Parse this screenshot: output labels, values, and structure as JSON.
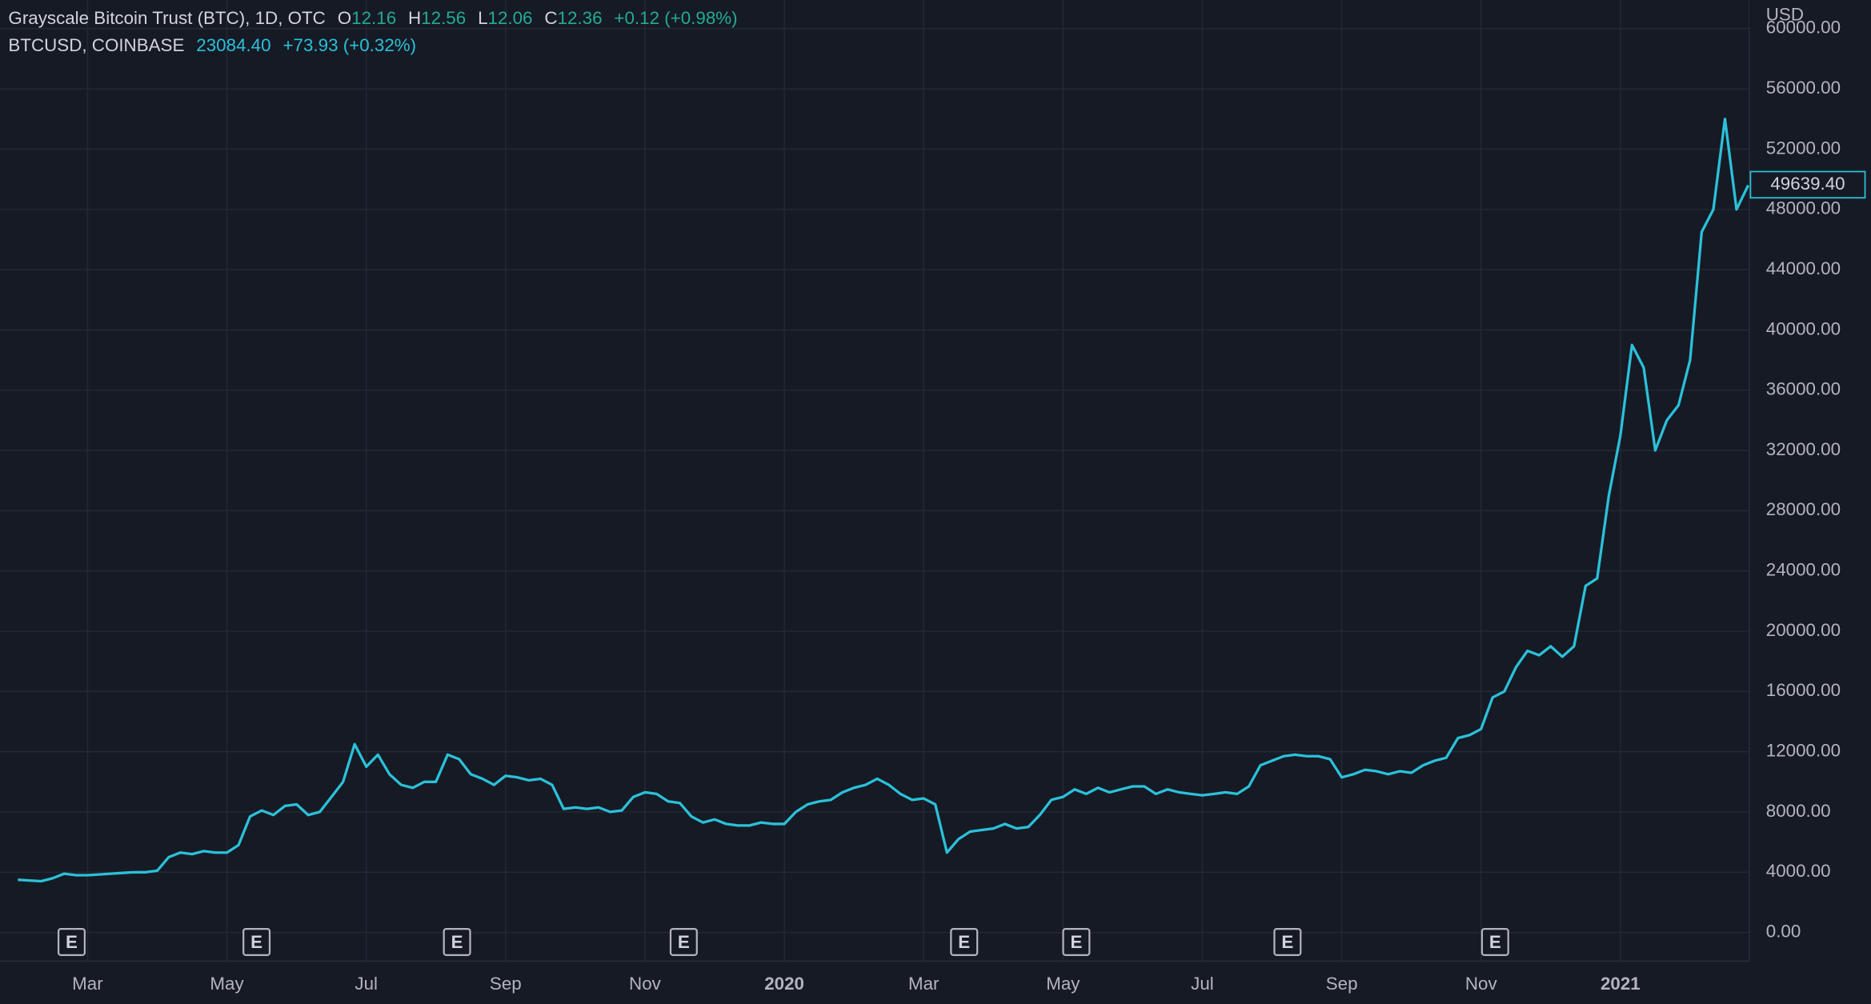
{
  "chart_data": {
    "type": "line",
    "title": "Grayscale Bitcoin Trust (BTC), 1D, OTC",
    "ohlc": [
      {
        "label": "O",
        "value": "12.16"
      },
      {
        "label": "H",
        "value": "12.56"
      },
      {
        "label": "L",
        "value": "12.06"
      },
      {
        "label": "C",
        "value": "12.36"
      }
    ],
    "change": "+0.12 (+0.98%)",
    "compare_quote": "23084.40",
    "compare_change": "+73.93 (+0.32%)",
    "y_unit": "USD",
    "grid": true,
    "background": "#161a25",
    "events": [
      "E",
      "E",
      "E",
      "E",
      "E",
      "E",
      "E",
      "E"
    ],
    "categories": [
      null,
      null,
      null,
      null,
      null,
      null,
      "Mar",
      null,
      null,
      null,
      null,
      null,
      null,
      null,
      null,
      null,
      null,
      null,
      "May",
      null,
      null,
      null,
      null,
      null,
      null,
      null,
      null,
      null,
      null,
      null,
      "Jul",
      null,
      null,
      null,
      null,
      null,
      null,
      null,
      null,
      null,
      null,
      null,
      "Sep",
      null,
      null,
      null,
      null,
      null,
      null,
      null,
      null,
      null,
      null,
      null,
      "Nov",
      null,
      null,
      null,
      null,
      null,
      null,
      null,
      null,
      null,
      null,
      null,
      "2020",
      null,
      null,
      null,
      null,
      null,
      null,
      null,
      null,
      null,
      null,
      null,
      "Mar",
      null,
      null,
      null,
      null,
      null,
      null,
      null,
      null,
      null,
      null,
      null,
      "May",
      null,
      null,
      null,
      null,
      null,
      null,
      null,
      null,
      null,
      null,
      null,
      "Jul",
      null,
      null,
      null,
      null,
      null,
      null,
      null,
      null,
      null,
      null,
      null,
      "Sep",
      null,
      null,
      null,
      null,
      null,
      null,
      null,
      null,
      null,
      null,
      null,
      "Nov",
      null,
      null,
      null,
      null,
      null,
      null,
      null,
      null,
      null,
      null,
      null,
      "2021",
      null,
      null,
      null,
      null,
      null,
      null,
      null,
      null,
      null,
      null,
      null
    ],
    "series": [
      {
        "name": "BTCUSD, COINBASE",
        "color": "#2bc1d9",
        "values": [
          3500,
          3450,
          3400,
          3600,
          3900,
          3800,
          3800,
          3850,
          3900,
          3950,
          4000,
          4000,
          4100,
          5000,
          5300,
          5200,
          5400,
          5300,
          5300,
          5800,
          7700,
          8100,
          7800,
          8400,
          8500,
          7800,
          8000,
          9000,
          10000,
          12500,
          11000,
          11800,
          10500,
          9800,
          9600,
          10000,
          10000,
          11800,
          11500,
          10500,
          10200,
          9800,
          10400,
          10300,
          10100,
          10200,
          9800,
          8200,
          8300,
          8200,
          8300,
          8000,
          8100,
          9000,
          9300,
          9200,
          8700,
          8600,
          7700,
          7300,
          7500,
          7200,
          7100,
          7100,
          7300,
          7200,
          7200,
          8000,
          8500,
          8700,
          8800,
          9300,
          9600,
          9800,
          10200,
          9800,
          9200,
          8800,
          8900,
          8500,
          5300,
          6200,
          6700,
          6800,
          6900,
          7200,
          6900,
          7000,
          7800,
          8800,
          9000,
          9500,
          9200,
          9600,
          9300,
          9500,
          9700,
          9700,
          9200,
          9500,
          9300,
          9200,
          9100,
          9200,
          9300,
          9200,
          9700,
          11100,
          11400,
          11700,
          11800,
          11700,
          11700,
          11500,
          10300,
          10500,
          10800,
          10700,
          10500,
          10700,
          10600,
          11100,
          11400,
          11600,
          12900,
          13100,
          13500,
          15600,
          16000,
          17600,
          18700,
          18400,
          19000,
          18300,
          19000,
          23000,
          23500,
          29000,
          33000,
          39000,
          37500,
          32000,
          34000,
          35000,
          38000,
          46500,
          48000,
          54000,
          48000,
          49600
        ]
      }
    ],
    "price_marker": {
      "value": 49639.4,
      "label": "49639.40"
    },
    "ylim": [
      -1900,
      61900
    ],
    "yticks": [
      {
        "value": 0,
        "label": "0.00"
      },
      {
        "value": 4000,
        "label": "4000.00"
      },
      {
        "value": 8000,
        "label": "8000.00"
      },
      {
        "value": 12000,
        "label": "12000.00"
      },
      {
        "value": 16000,
        "label": "16000.00"
      },
      {
        "value": 20000,
        "label": "20000.00"
      },
      {
        "value": 24000,
        "label": "24000.00"
      },
      {
        "value": 28000,
        "label": "28000.00"
      },
      {
        "value": 32000,
        "label": "32000.00"
      },
      {
        "value": 36000,
        "label": "36000.00"
      },
      {
        "value": 40000,
        "label": "40000.00"
      },
      {
        "value": 44000,
        "label": "44000.00"
      },
      {
        "value": 48000,
        "label": "48000.00"
      },
      {
        "value": 52000,
        "label": "52000.00"
      },
      {
        "value": 56000,
        "label": "56000.00"
      },
      {
        "value": 60000,
        "label": "60000.00"
      }
    ]
  }
}
